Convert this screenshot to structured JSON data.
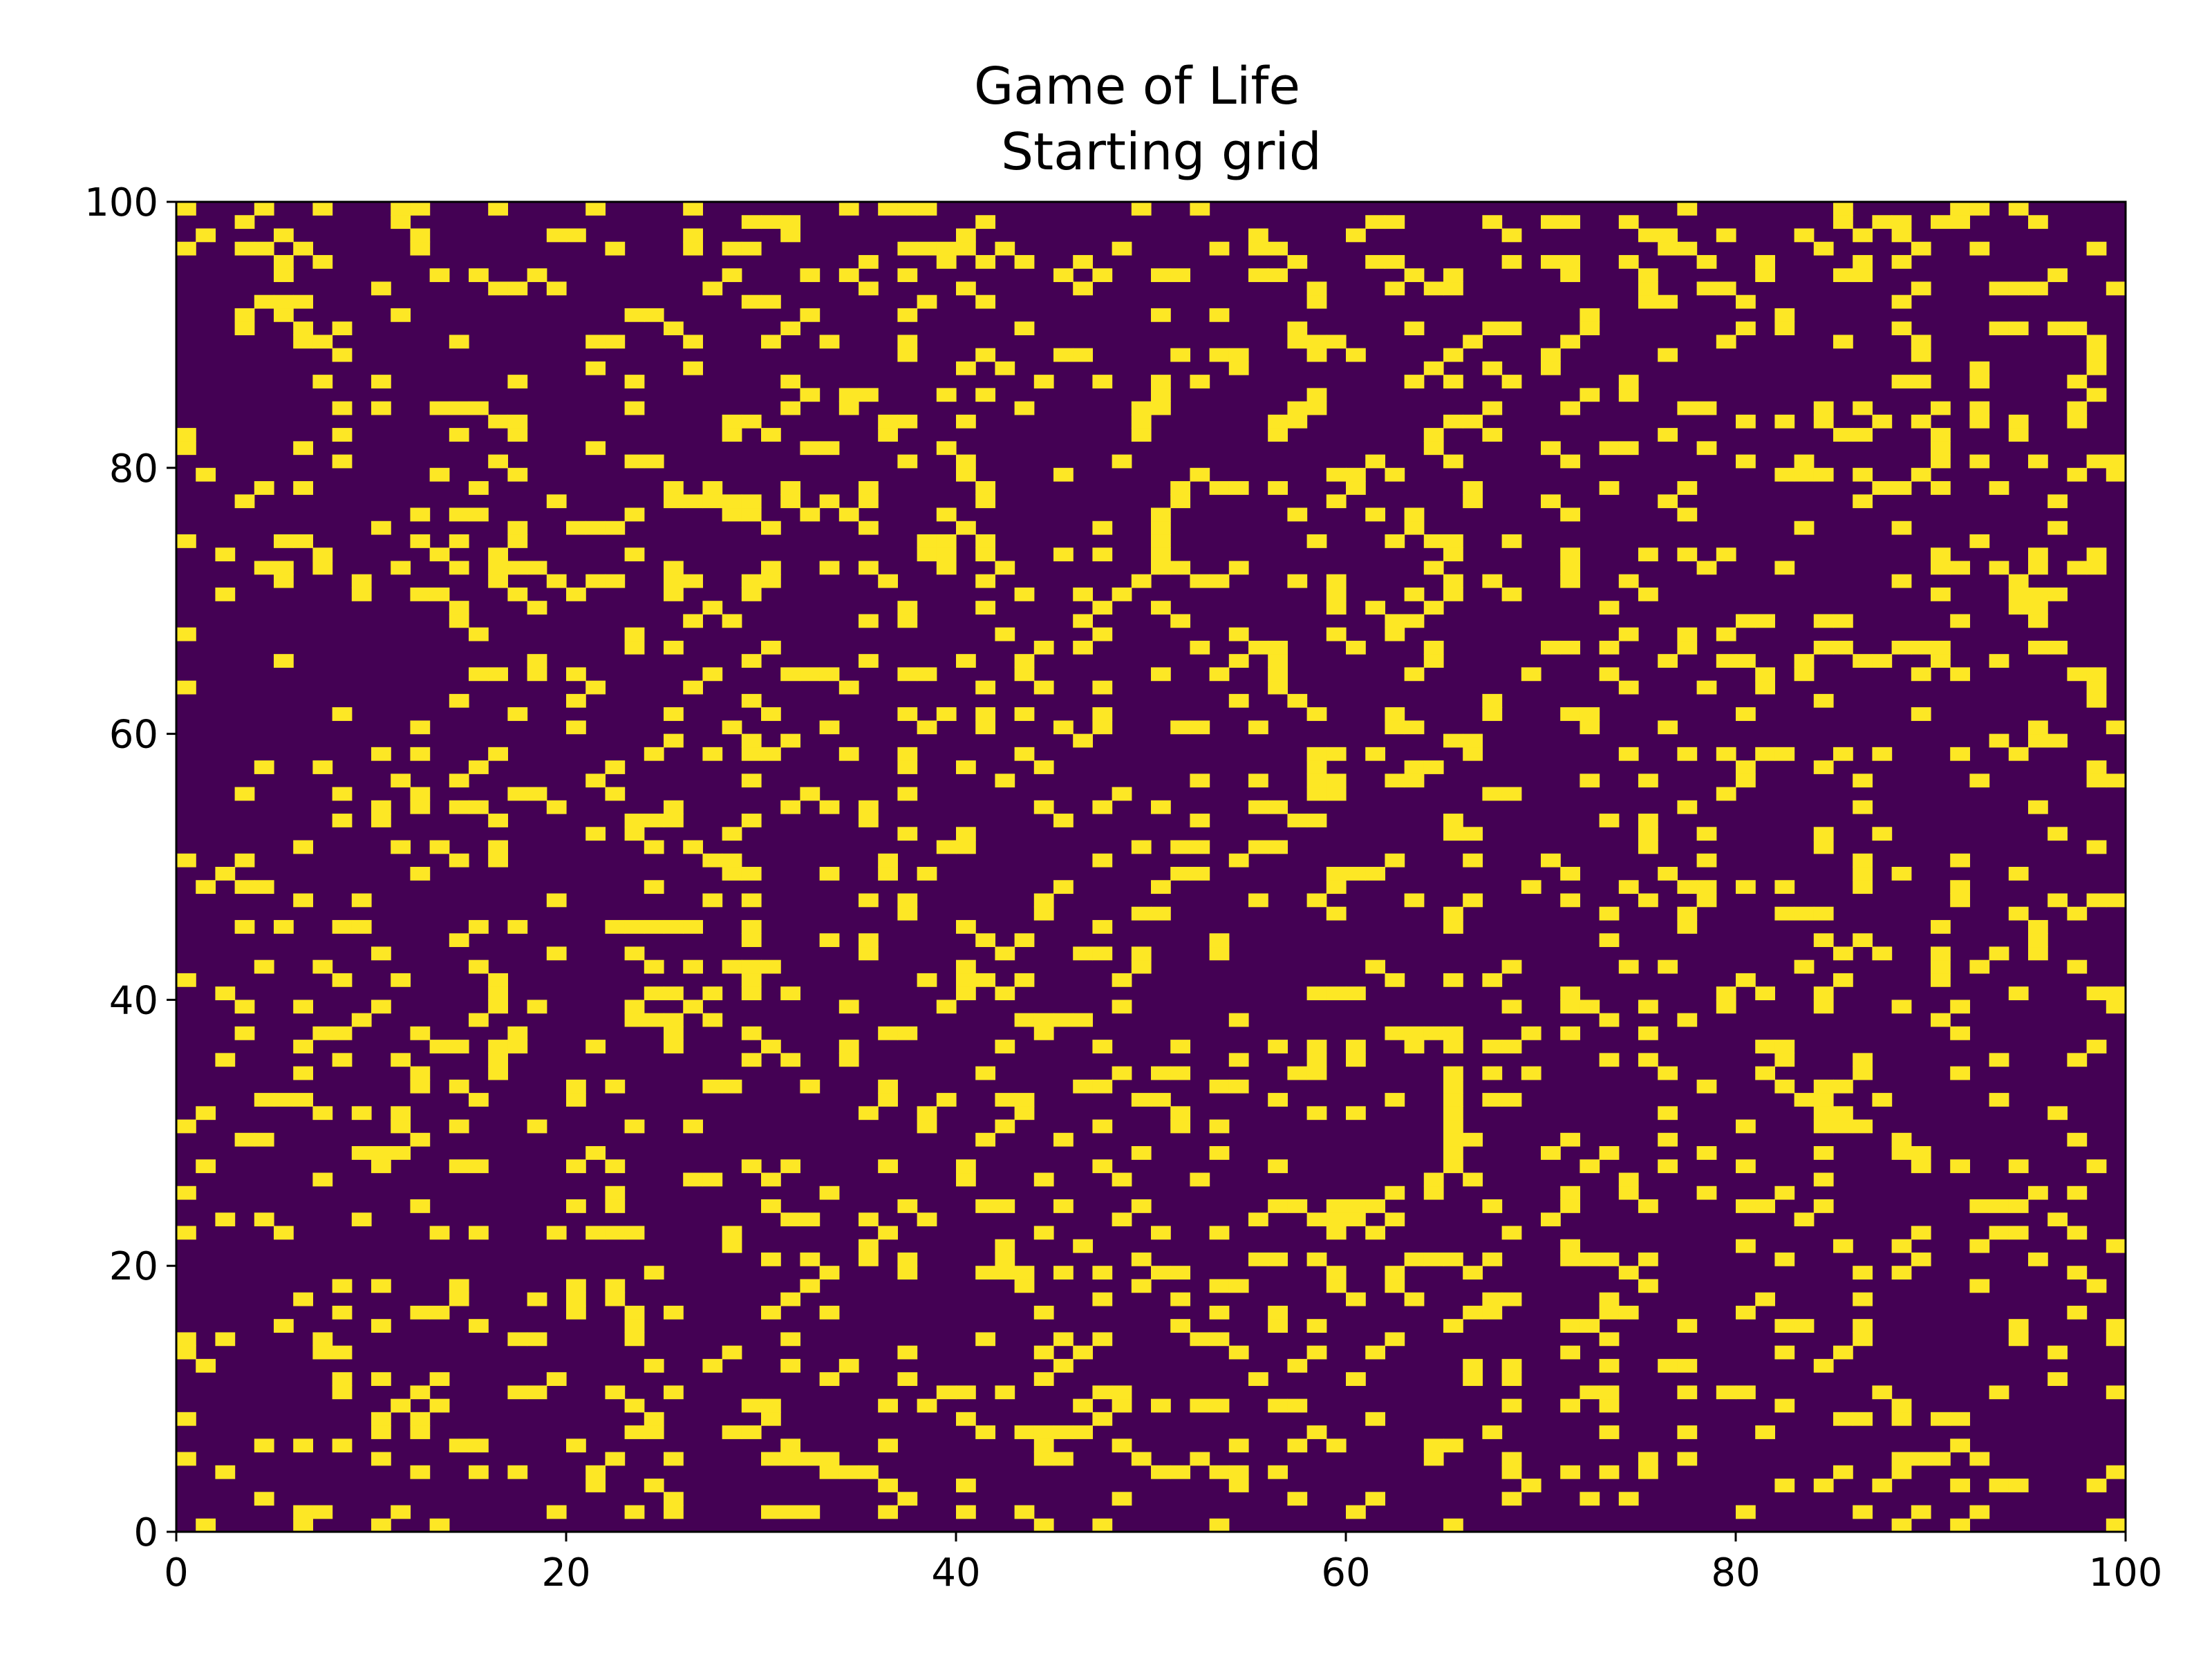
{
  "chart_data": {
    "type": "heatmap",
    "title": "Game of Life",
    "subtitle": "Starting grid",
    "xlabel": "",
    "ylabel": "",
    "xlim": [
      0,
      100
    ],
    "ylim": [
      0,
      100
    ],
    "x_ticks": [
      "0",
      "20",
      "40",
      "60",
      "80",
      "100"
    ],
    "y_ticks": [
      "0",
      "20",
      "40",
      "60",
      "80",
      "100"
    ],
    "grid_rows": 100,
    "grid_cols": 100,
    "approx_live_fraction": 0.16,
    "colormap": "viridis",
    "grid_lines": false,
    "colors": {
      "dead": "#440154",
      "alive": "#fde725",
      "axis": "#000000"
    }
  }
}
